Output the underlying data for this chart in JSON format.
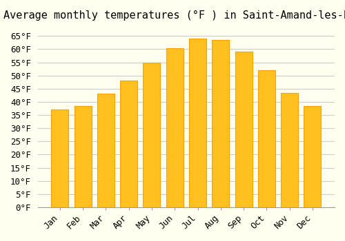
{
  "title": "Average monthly temperatures (°F ) in Saint-Amand-les-Eaux",
  "months": [
    "Jan",
    "Feb",
    "Mar",
    "Apr",
    "May",
    "Jun",
    "Jul",
    "Aug",
    "Sep",
    "Oct",
    "Nov",
    "Dec"
  ],
  "values": [
    37,
    38.5,
    43,
    48,
    55,
    60.5,
    64,
    63.5,
    59,
    52,
    43.5,
    38.5
  ],
  "bar_color_face": "#FFC020",
  "bar_color_edge": "#FFA000",
  "background_color": "#FFFFF0",
  "grid_color": "#CCCCCC",
  "ylim": [
    0,
    68
  ],
  "yticks": [
    0,
    5,
    10,
    15,
    20,
    25,
    30,
    35,
    40,
    45,
    50,
    55,
    60,
    65
  ],
  "title_fontsize": 11,
  "tick_fontsize": 9,
  "font_family": "monospace"
}
